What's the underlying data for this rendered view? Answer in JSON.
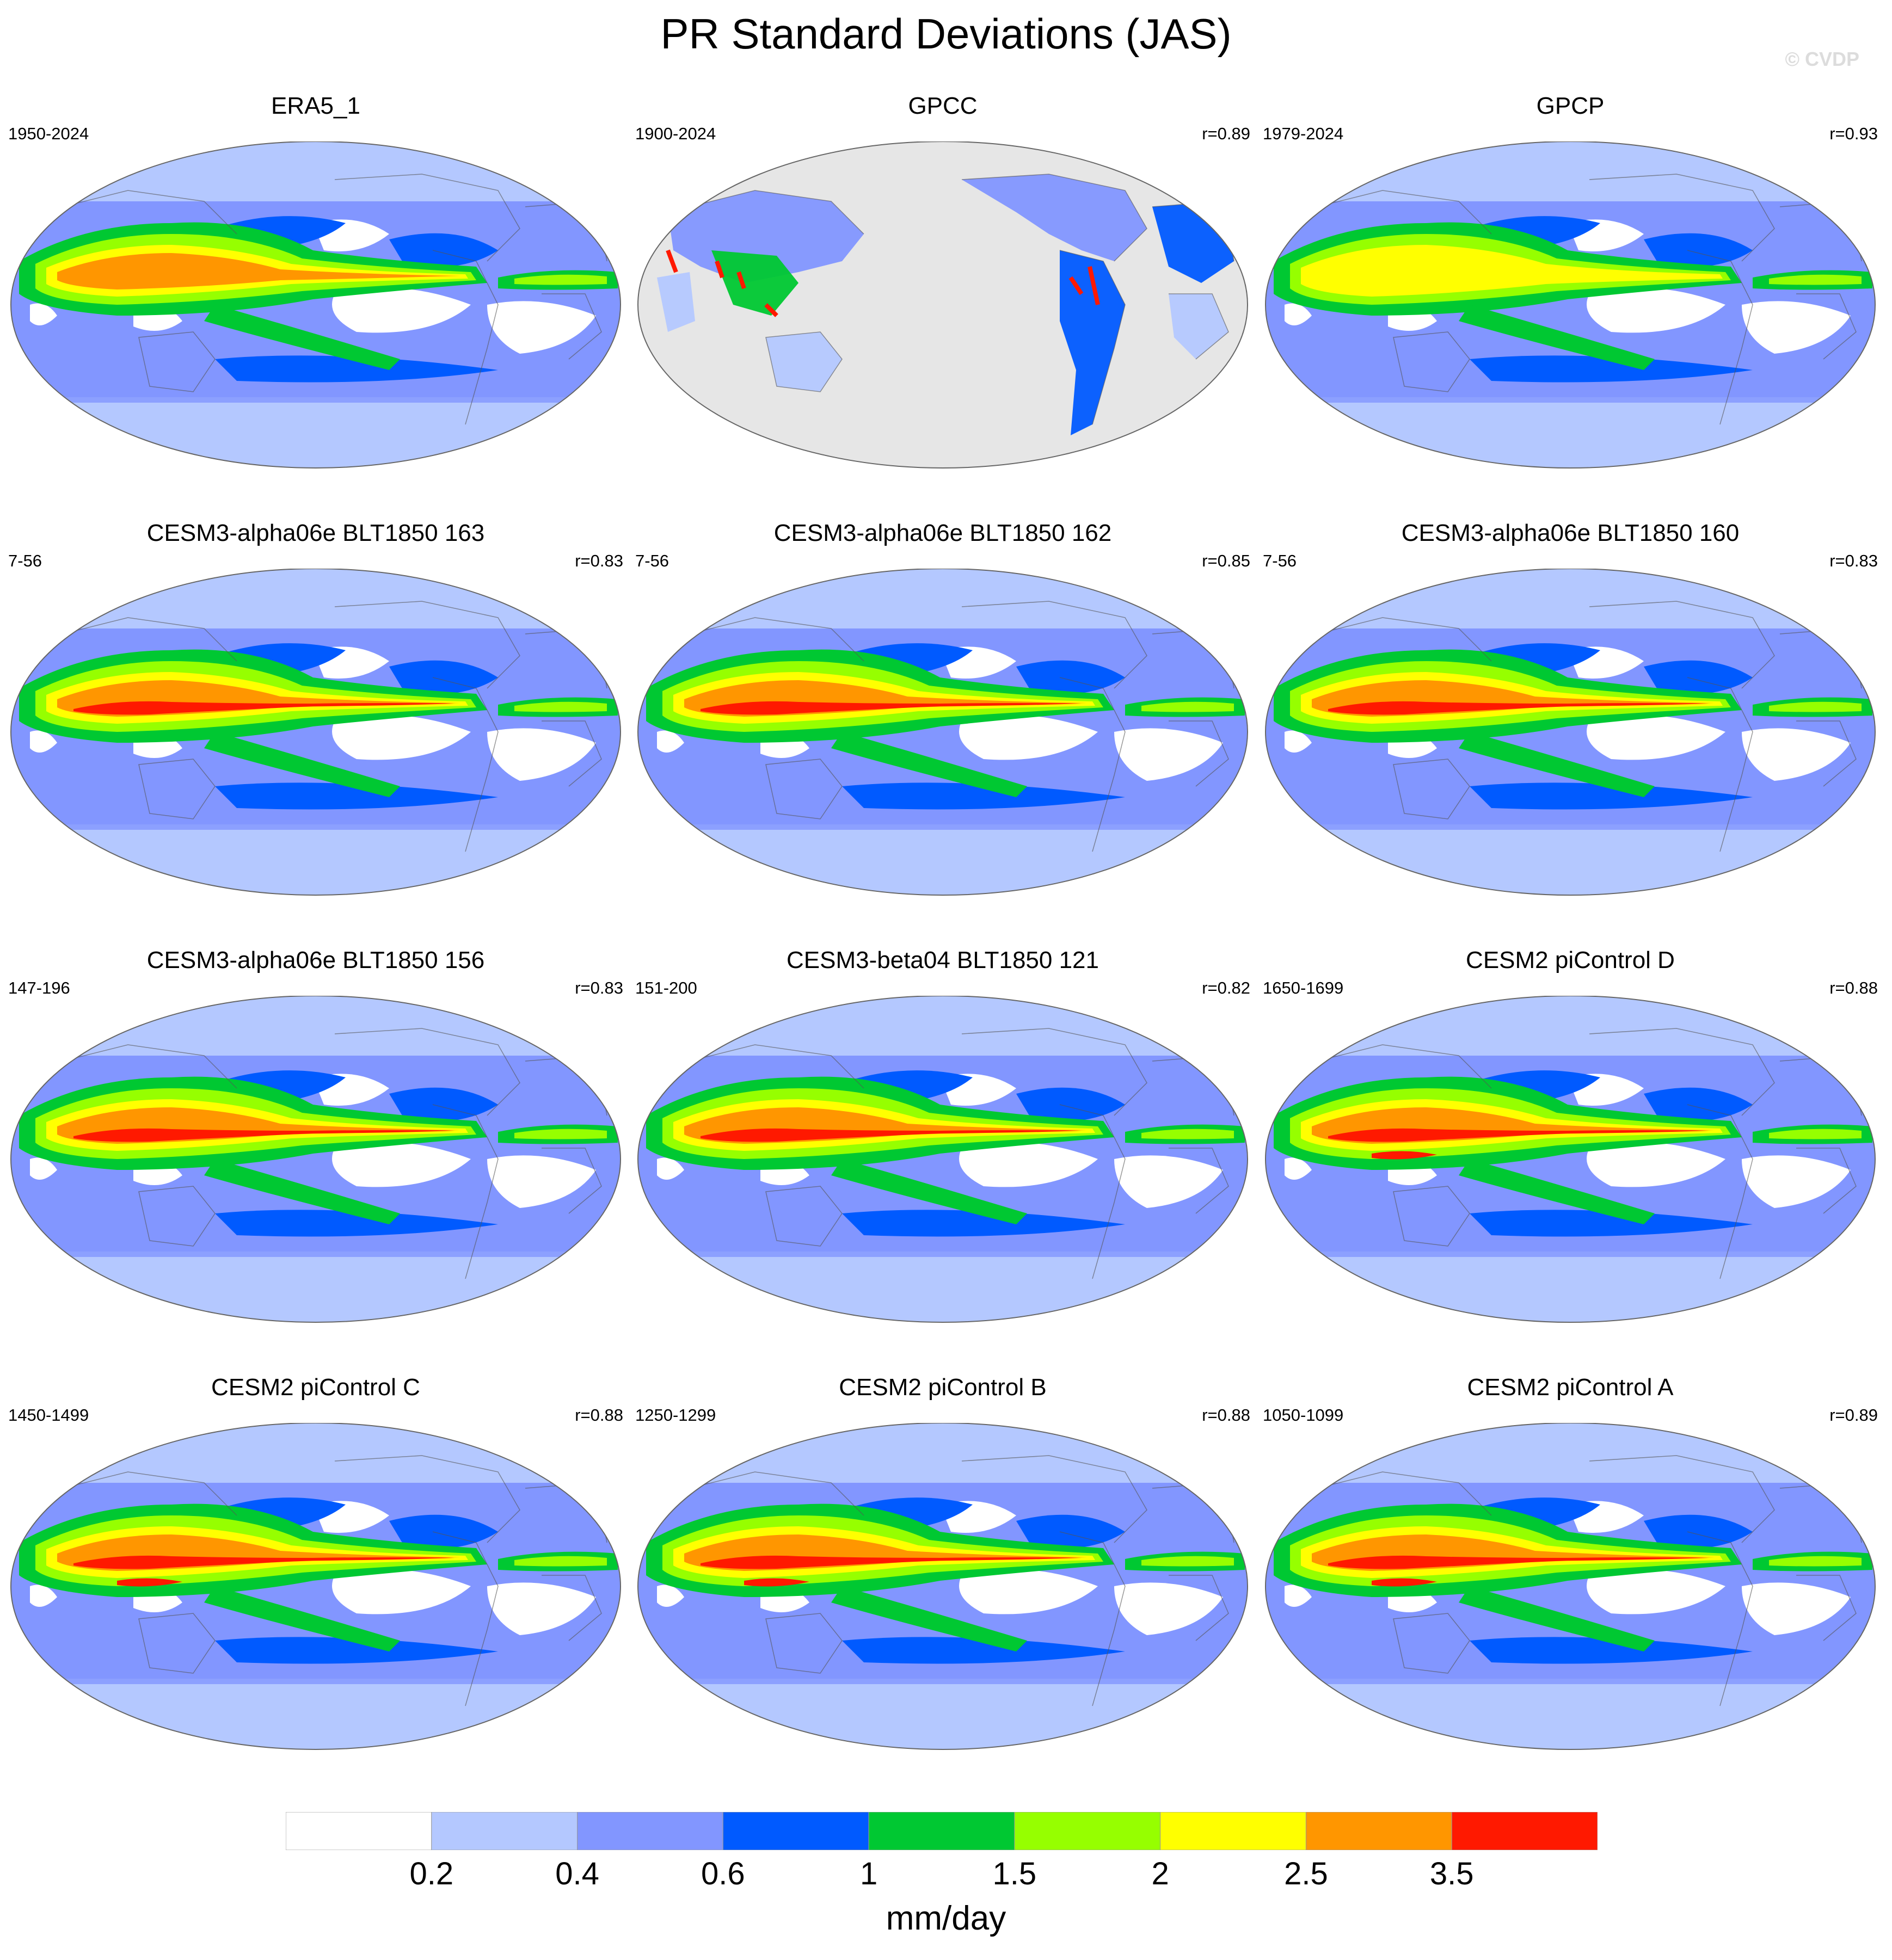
{
  "title": "PR Standard Deviations (JAS)",
  "watermark": "© CVDP",
  "panels": [
    {
      "title": "ERA5_1",
      "years": "1950-2024",
      "r": "",
      "style": "era"
    },
    {
      "title": "GPCC",
      "years": "1900-2024",
      "r": "r=0.89",
      "style": "land"
    },
    {
      "title": "GPCP",
      "years": "1979-2024",
      "r": "r=0.93",
      "style": "obs"
    },
    {
      "title": "CESM3-alpha06e BLT1850 163",
      "years": "7-56",
      "r": "r=0.83",
      "style": "model"
    },
    {
      "title": "CESM3-alpha06e BLT1850 162",
      "years": "7-56",
      "r": "r=0.85",
      "style": "model"
    },
    {
      "title": "CESM3-alpha06e BLT1850 160",
      "years": "7-56",
      "r": "r=0.83",
      "style": "model"
    },
    {
      "title": "CESM3-alpha06e BLT1850 156",
      "years": "147-196",
      "r": "r=0.83",
      "style": "model"
    },
    {
      "title": "CESM3-beta04 BLT1850 121",
      "years": "151-200",
      "r": "r=0.82",
      "style": "model"
    },
    {
      "title": "CESM2 piControl D",
      "years": "1650-1699",
      "r": "r=0.88",
      "style": "cesm2"
    },
    {
      "title": "CESM2 piControl C",
      "years": "1450-1499",
      "r": "r=0.88",
      "style": "cesm2"
    },
    {
      "title": "CESM2 piControl B",
      "years": "1250-1299",
      "r": "r=0.88",
      "style": "cesm2"
    },
    {
      "title": "CESM2 piControl A",
      "years": "1050-1099",
      "r": "r=0.89",
      "style": "cesm2"
    }
  ],
  "colorbar": {
    "colors": [
      "#ffffff",
      "#b4c8ff",
      "#8296ff",
      "#005aff",
      "#00c832",
      "#96ff00",
      "#ffff00",
      "#ff9600",
      "#ff1900"
    ],
    "labels": [
      "0.2",
      "0.4",
      "0.6",
      "1",
      "1.5",
      "2",
      "2.5",
      "3.5"
    ],
    "units": "mm/day"
  },
  "missing_color": "#e6e6e6"
}
